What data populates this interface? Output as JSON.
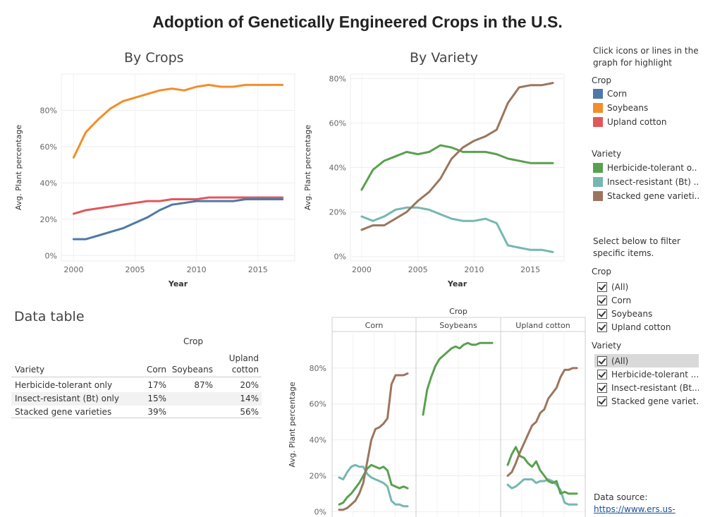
{
  "title": "Adoption of Genetically Engineered Crops in the U.S.",
  "colors": {
    "corn": "#4e79a7",
    "soybeans": "#f28e2b",
    "cotton": "#e15759",
    "herbicide": "#59a14f",
    "insect": "#76b7b2",
    "stacked": "#9c755f"
  },
  "chart_data": [
    {
      "type": "line",
      "title": "By Crops",
      "xlabel": "Year",
      "ylabel": "Avg. Plant percentage",
      "xlim": [
        1999,
        2018
      ],
      "ylim": [
        -0.03,
        1.0
      ],
      "xticks": [
        2000,
        2005,
        2010,
        2015
      ],
      "yticks": [
        0,
        0.2,
        0.4,
        0.6,
        0.8
      ],
      "ytick_labels": [
        "0%",
        "20%",
        "40%",
        "60%",
        "80%"
      ],
      "x": [
        2000,
        2001,
        2002,
        2003,
        2004,
        2005,
        2006,
        2007,
        2008,
        2009,
        2010,
        2011,
        2012,
        2013,
        2014,
        2015,
        2016,
        2017
      ],
      "series": [
        {
          "name": "Soybeans",
          "key": "soybeans",
          "values": [
            0.54,
            0.68,
            0.75,
            0.81,
            0.85,
            0.87,
            0.89,
            0.91,
            0.92,
            0.91,
            0.93,
            0.94,
            0.93,
            0.93,
            0.94,
            0.94,
            0.94,
            0.94
          ]
        },
        {
          "name": "Upland cotton",
          "key": "cotton",
          "values": [
            0.23,
            0.25,
            0.26,
            0.27,
            0.28,
            0.29,
            0.3,
            0.3,
            0.31,
            0.31,
            0.31,
            0.32,
            0.32,
            0.32,
            0.32,
            0.32,
            0.32,
            0.32
          ]
        },
        {
          "name": "Corn",
          "key": "corn",
          "values": [
            0.09,
            0.09,
            0.11,
            0.13,
            0.15,
            0.18,
            0.21,
            0.25,
            0.28,
            0.29,
            0.3,
            0.3,
            0.3,
            0.3,
            0.31,
            0.31,
            0.31,
            0.31
          ]
        }
      ]
    },
    {
      "type": "line",
      "title": "By Variety",
      "xlabel": "Year",
      "ylabel": "Avg. Plant percentage",
      "xlim": [
        1999,
        2018
      ],
      "ylim": [
        -0.02,
        0.82
      ],
      "xticks": [
        2000,
        2005,
        2010,
        2015
      ],
      "yticks": [
        0,
        0.2,
        0.4,
        0.6,
        0.8
      ],
      "ytick_labels": [
        "0%",
        "20%",
        "40%",
        "60%",
        "80%"
      ],
      "x": [
        2000,
        2001,
        2002,
        2003,
        2004,
        2005,
        2006,
        2007,
        2008,
        2009,
        2010,
        2011,
        2012,
        2013,
        2014,
        2015,
        2016,
        2017
      ],
      "series": [
        {
          "name": "Herbicide-tolerant only",
          "key": "herbicide",
          "values": [
            0.3,
            0.39,
            0.43,
            0.45,
            0.47,
            0.46,
            0.47,
            0.5,
            0.49,
            0.47,
            0.47,
            0.47,
            0.46,
            0.44,
            0.43,
            0.42,
            0.42,
            0.42
          ]
        },
        {
          "name": "Insect-resistant (Bt) only",
          "key": "insect",
          "values": [
            0.18,
            0.16,
            0.18,
            0.21,
            0.22,
            0.22,
            0.21,
            0.19,
            0.17,
            0.16,
            0.16,
            0.17,
            0.15,
            0.05,
            0.04,
            0.03,
            0.03,
            0.02
          ]
        },
        {
          "name": "Stacked gene varieties",
          "key": "stacked",
          "values": [
            0.12,
            0.14,
            0.14,
            0.17,
            0.2,
            0.25,
            0.29,
            0.35,
            0.44,
            0.49,
            0.52,
            0.54,
            0.57,
            0.69,
            0.76,
            0.77,
            0.77,
            0.78
          ]
        }
      ]
    },
    {
      "type": "line",
      "title": "Crop",
      "ylabel": "Avg. Plant percentage",
      "panels": [
        "Corn",
        "Soybeans",
        "Upland cotton"
      ],
      "xlim": [
        1999,
        2018
      ],
      "ylim": [
        -0.03,
        1.0
      ],
      "yticks": [
        0,
        0.2,
        0.4,
        0.6,
        0.8
      ],
      "ytick_labels": [
        "0%",
        "20%",
        "40%",
        "60%",
        "80%"
      ],
      "x": [
        2000,
        2001,
        2002,
        2003,
        2004,
        2005,
        2006,
        2007,
        2008,
        2009,
        2010,
        2011,
        2012,
        2013,
        2014,
        2015,
        2016,
        2017
      ],
      "series": [
        {
          "panel": 0,
          "key": "insect",
          "values": [
            0.19,
            0.18,
            0.22,
            0.25,
            0.26,
            0.25,
            0.25,
            0.21,
            0.19,
            0.18,
            0.17,
            0.16,
            0.14,
            0.06,
            0.04,
            0.04,
            0.03,
            0.03
          ]
        },
        {
          "panel": 0,
          "key": "herbicide",
          "values": [
            0.04,
            0.05,
            0.08,
            0.1,
            0.13,
            0.16,
            0.2,
            0.24,
            0.26,
            0.25,
            0.24,
            0.25,
            0.23,
            0.15,
            0.14,
            0.13,
            0.14,
            0.13
          ]
        },
        {
          "panel": 0,
          "key": "stacked",
          "values": [
            0.01,
            0.01,
            0.02,
            0.04,
            0.06,
            0.1,
            0.16,
            0.28,
            0.4,
            0.46,
            0.47,
            0.49,
            0.52,
            0.71,
            0.76,
            0.76,
            0.76,
            0.77
          ]
        },
        {
          "panel": 1,
          "key": "herbicide",
          "values": [
            0.54,
            0.68,
            0.75,
            0.81,
            0.85,
            0.87,
            0.89,
            0.91,
            0.92,
            0.91,
            0.93,
            0.94,
            0.93,
            0.93,
            0.94,
            0.94,
            0.94,
            0.94
          ]
        },
        {
          "panel": 2,
          "key": "insect",
          "values": [
            0.15,
            0.13,
            0.14,
            0.16,
            0.18,
            0.18,
            0.18,
            0.16,
            0.17,
            0.17,
            0.18,
            0.17,
            0.15,
            0.12,
            0.05,
            0.04,
            0.04,
            0.04
          ]
        },
        {
          "panel": 2,
          "key": "herbicide",
          "values": [
            0.26,
            0.32,
            0.36,
            0.31,
            0.3,
            0.27,
            0.25,
            0.28,
            0.23,
            0.2,
            0.17,
            0.16,
            0.17,
            0.1,
            0.11,
            0.1,
            0.1,
            0.1
          ]
        },
        {
          "panel": 2,
          "key": "stacked",
          "values": [
            0.2,
            0.22,
            0.27,
            0.33,
            0.38,
            0.43,
            0.48,
            0.5,
            0.55,
            0.57,
            0.63,
            0.66,
            0.69,
            0.75,
            0.79,
            0.79,
            0.8,
            0.8
          ]
        }
      ]
    },
    {
      "type": "table",
      "title": "Data table",
      "column_group": "Crop",
      "row_header": "Variety",
      "columns": [
        "Corn",
        "Soybeans",
        "Upland\ncotton"
      ],
      "rows": [
        {
          "label": "Herbicide-tolerant only",
          "values": [
            "17%",
            "87%",
            "20%"
          ]
        },
        {
          "label": "Insect-resistant (Bt) only",
          "values": [
            "15%",
            "",
            "14%"
          ]
        },
        {
          "label": "Stacked gene varieties",
          "values": [
            "39%",
            "",
            "56%"
          ]
        }
      ]
    }
  ],
  "sidebar": {
    "hint": "Click icons or lines in the graph for highlight",
    "legend_crop_title": "Crop",
    "legend_crop": [
      {
        "label": "Corn",
        "key": "corn"
      },
      {
        "label": "Soybeans",
        "key": "soybeans"
      },
      {
        "label": "Upland cotton",
        "key": "cotton"
      }
    ],
    "legend_variety_title": "Variety",
    "legend_variety": [
      {
        "label": "Herbicide-tolerant o..",
        "key": "herbicide"
      },
      {
        "label": "Insect-resistant (Bt) ..",
        "key": "insect"
      },
      {
        "label": "Stacked gene varieti..",
        "key": "stacked"
      }
    ],
    "filter_hint": "Select below to filter specific items.",
    "filter_crop_title": "Crop",
    "filter_crop": [
      "(All)",
      "Corn",
      "Soybeans",
      "Upland cotton"
    ],
    "filter_variety_title": "Variety",
    "filter_variety": [
      "(All)",
      "Herbicide-tolerant ...",
      "Insect-resistant (Bt...",
      "Stacked gene variet..."
    ],
    "source_label": "Data source:",
    "source_link": "https://www.ers.us-"
  }
}
